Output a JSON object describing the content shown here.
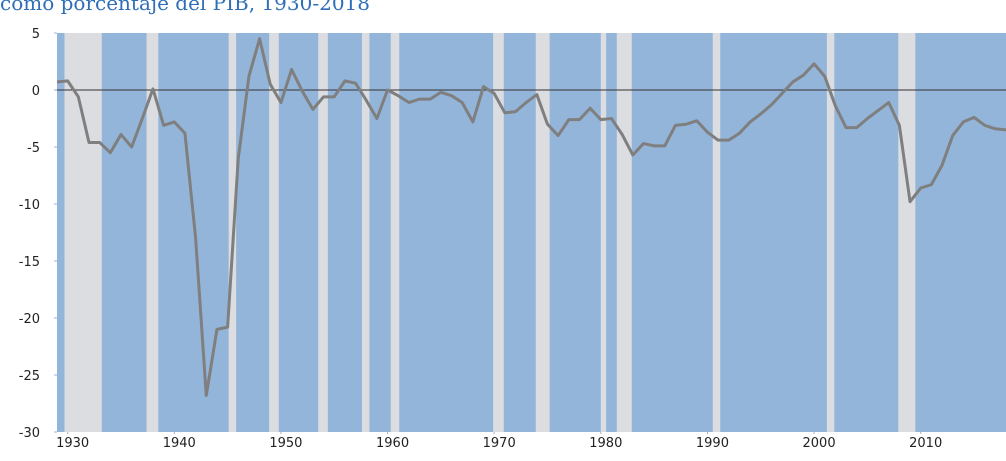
{
  "chart_data": {
    "type": "line",
    "title": "como porcentaje del PIB, 1930-2018",
    "x": [
      1929,
      1930,
      1931,
      1932,
      1933,
      1934,
      1935,
      1936,
      1937,
      1938,
      1939,
      1940,
      1941,
      1942,
      1943,
      1944,
      1945,
      1946,
      1947,
      1948,
      1949,
      1950,
      1951,
      1952,
      1953,
      1954,
      1955,
      1956,
      1957,
      1958,
      1959,
      1960,
      1961,
      1962,
      1963,
      1964,
      1965,
      1966,
      1967,
      1968,
      1969,
      1970,
      1971,
      1972,
      1973,
      1974,
      1975,
      1976,
      1977,
      1978,
      1979,
      1980,
      1981,
      1982,
      1983,
      1984,
      1985,
      1986,
      1987,
      1988,
      1989,
      1990,
      1991,
      1992,
      1993,
      1994,
      1995,
      1996,
      1997,
      1998,
      1999,
      2000,
      2001,
      2002,
      2003,
      2004,
      2005,
      2006,
      2007,
      2008,
      2009,
      2010,
      2011,
      2012,
      2013,
      2014,
      2015,
      2016,
      2017,
      2018
    ],
    "series": [
      {
        "color": "#7f7f7f",
        "values": [
          0.7,
          0.8,
          -0.6,
          -4.6,
          -4.6,
          -5.5,
          -3.9,
          -5.0,
          -2.5,
          0.1,
          -3.1,
          -2.8,
          -3.8,
          -13.0,
          -26.8,
          -21.0,
          -20.8,
          -6.0,
          1.2,
          4.5,
          0.5,
          -1.1,
          1.8,
          -0.1,
          -1.7,
          -0.6,
          -0.6,
          0.8,
          0.6,
          -0.9,
          -2.5,
          0.0,
          -0.5,
          -1.1,
          -0.8,
          -0.8,
          -0.2,
          -0.5,
          -1.1,
          -2.8,
          0.3,
          -0.3,
          -2.0,
          -1.9,
          -1.1,
          -0.4,
          -3.0,
          -4.0,
          -2.6,
          -2.6,
          -1.6,
          -2.6,
          -2.5,
          -3.9,
          -5.7,
          -4.7,
          -4.9,
          -4.9,
          -3.1,
          -3.0,
          -2.7,
          -3.7,
          -4.4,
          -4.4,
          -3.8,
          -2.8,
          -2.1,
          -1.3,
          -0.3,
          0.7,
          1.3,
          2.3,
          1.2,
          -1.4,
          -3.3,
          -3.3,
          -2.5,
          -1.8,
          -1.1,
          -3.1,
          -9.8,
          -8.6,
          -8.3,
          -6.6,
          -4.0,
          -2.8,
          -2.4,
          -3.1,
          -3.4,
          -3.5
        ]
      }
    ],
    "shaded_periods": [
      [
        1929.7,
        1933.2
      ],
      [
        1937.4,
        1938.5
      ],
      [
        1945.1,
        1945.8
      ],
      [
        1948.9,
        1949.8
      ],
      [
        1953.5,
        1954.4
      ],
      [
        1957.6,
        1958.3
      ],
      [
        1960.3,
        1961.1
      ],
      [
        1969.9,
        1970.9
      ],
      [
        1973.9,
        1975.2
      ],
      [
        1980.0,
        1980.5
      ],
      [
        1981.5,
        1982.9
      ],
      [
        1990.5,
        1991.2
      ],
      [
        2001.2,
        2001.9
      ],
      [
        2007.9,
        2009.5
      ]
    ],
    "shade_color": "#dcdde0",
    "background": "#94b5da",
    "xlim": [
      1929,
      2018
    ],
    "xticks": [
      1930,
      1940,
      1950,
      1960,
      1970,
      1980,
      1990,
      2000,
      2010
    ],
    "ylim": [
      -30,
      5
    ],
    "yticks": [
      -30,
      -25,
      -20,
      -15,
      -10,
      -5,
      0,
      5
    ],
    "zero_line": true
  }
}
